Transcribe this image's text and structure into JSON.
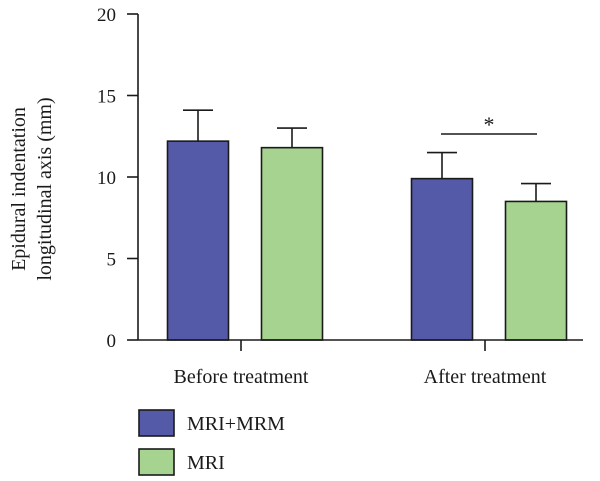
{
  "chart_data": {
    "type": "bar",
    "categories": [
      "Before treatment",
      "After treatment"
    ],
    "series": [
      {
        "name": "MRI+MRM",
        "values": [
          12.2,
          9.9
        ],
        "errors": [
          1.9,
          1.6
        ],
        "color": "#5459a8"
      },
      {
        "name": "MRI",
        "values": [
          11.8,
          8.5
        ],
        "errors": [
          1.2,
          1.1
        ],
        "color": "#a6d490"
      }
    ],
    "ylabel_lines": [
      "Epidural indentation",
      "longitudinal axis (mm)"
    ],
    "ylim": [
      0,
      20
    ],
    "yticks": [
      "0",
      "5",
      "10",
      "15",
      "20"
    ],
    "legend_position": "bottom-left",
    "annotations": [
      {
        "text": "*",
        "category": "After treatment"
      }
    ]
  }
}
